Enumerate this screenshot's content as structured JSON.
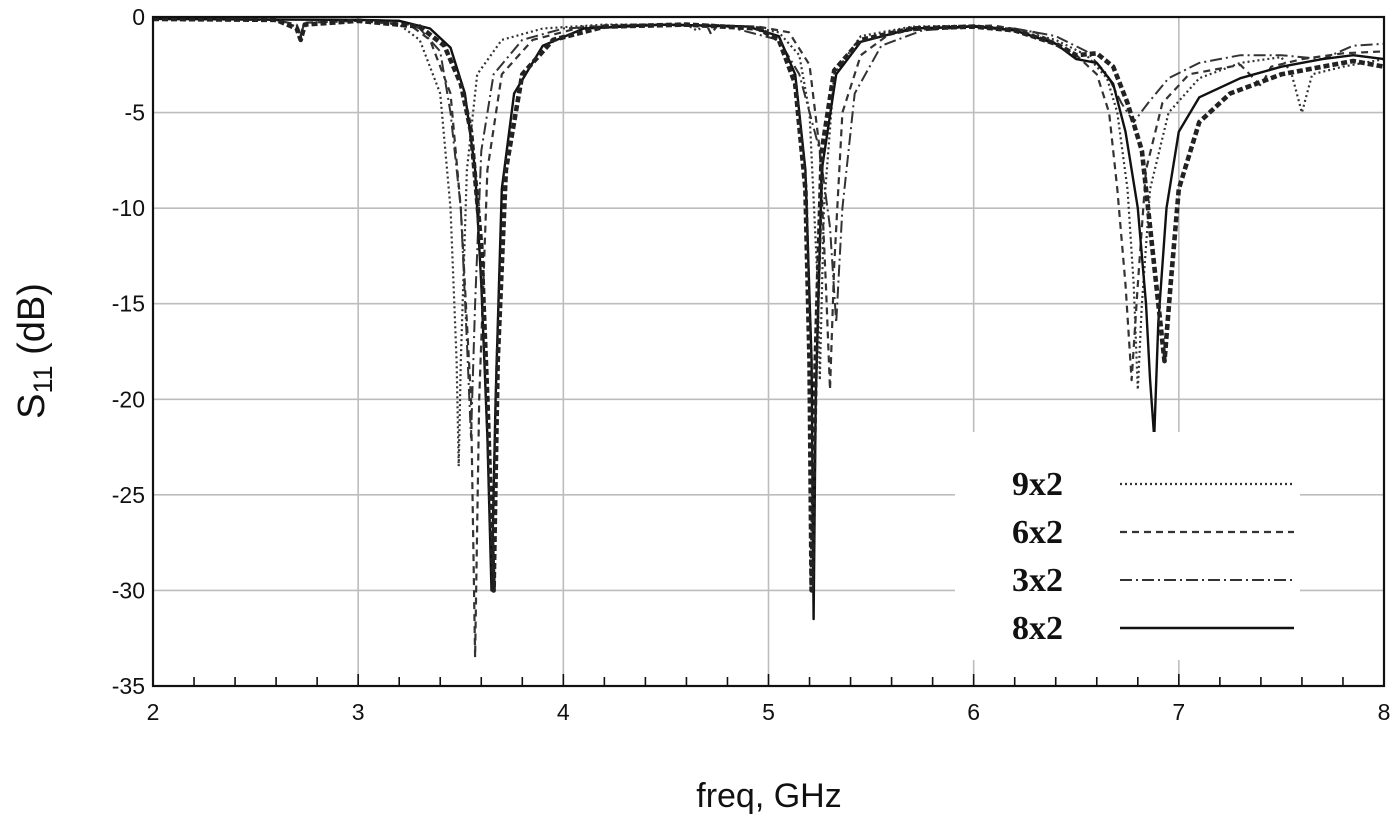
{
  "chart_data": {
    "type": "line",
    "title": "",
    "xlabel": "freq, GHz",
    "ylabel_main": "S",
    "ylabel_sub": "11",
    "ylabel_unit": " (dB)",
    "xlim": [
      2,
      8
    ],
    "ylim": [
      -35,
      0
    ],
    "xticks": [
      2,
      3,
      4,
      5,
      6,
      7,
      8
    ],
    "yticks": [
      0,
      -5,
      -10,
      -15,
      -20,
      -25,
      -30,
      -35
    ],
    "grid": true,
    "legend_position": "bottom-right",
    "series": [
      {
        "name": "9x2",
        "style": "dotted",
        "color": "#333333",
        "points": [
          [
            2.0,
            -0.1
          ],
          [
            2.6,
            -0.15
          ],
          [
            2.7,
            -0.5
          ],
          [
            2.72,
            -1.0
          ],
          [
            2.74,
            -0.3
          ],
          [
            3.0,
            -0.2
          ],
          [
            3.2,
            -0.4
          ],
          [
            3.3,
            -1.2
          ],
          [
            3.4,
            -4
          ],
          [
            3.45,
            -10
          ],
          [
            3.48,
            -18
          ],
          [
            3.49,
            -23.5
          ],
          [
            3.5,
            -18
          ],
          [
            3.53,
            -8
          ],
          [
            3.58,
            -3
          ],
          [
            3.7,
            -1.2
          ],
          [
            3.9,
            -0.6
          ],
          [
            4.2,
            -0.4
          ],
          [
            4.6,
            -0.4
          ],
          [
            4.65,
            -0.7
          ],
          [
            4.7,
            -0.4
          ],
          [
            4.9,
            -0.5
          ],
          [
            5.05,
            -0.8
          ],
          [
            5.15,
            -2
          ],
          [
            5.2,
            -5
          ],
          [
            5.24,
            -14
          ],
          [
            5.25,
            -19
          ],
          [
            5.27,
            -10
          ],
          [
            5.32,
            -3
          ],
          [
            5.45,
            -1
          ],
          [
            5.7,
            -0.5
          ],
          [
            6.0,
            -0.45
          ],
          [
            6.2,
            -0.7
          ],
          [
            6.4,
            -1.2
          ],
          [
            6.55,
            -2
          ],
          [
            6.65,
            -3.2
          ],
          [
            6.7,
            -5
          ],
          [
            6.75,
            -9
          ],
          [
            6.78,
            -14
          ],
          [
            6.8,
            -19.5
          ],
          [
            6.82,
            -15
          ],
          [
            6.86,
            -9
          ],
          [
            6.95,
            -5
          ],
          [
            7.1,
            -3.2
          ],
          [
            7.3,
            -2.4
          ],
          [
            7.5,
            -2.1
          ],
          [
            7.55,
            -3
          ],
          [
            7.6,
            -5
          ],
          [
            7.65,
            -3
          ],
          [
            7.8,
            -2.6
          ],
          [
            8.0,
            -2.2
          ]
        ]
      },
      {
        "name": "6x2",
        "style": "dashed",
        "color": "#333333",
        "points": [
          [
            2.0,
            -0.1
          ],
          [
            2.6,
            -0.15
          ],
          [
            2.7,
            -0.4
          ],
          [
            2.72,
            -0.9
          ],
          [
            2.74,
            -0.3
          ],
          [
            3.0,
            -0.2
          ],
          [
            3.25,
            -0.4
          ],
          [
            3.35,
            -1.2
          ],
          [
            3.45,
            -4
          ],
          [
            3.5,
            -10
          ],
          [
            3.55,
            -20
          ],
          [
            3.57,
            -33.5
          ],
          [
            3.59,
            -20
          ],
          [
            3.63,
            -8
          ],
          [
            3.7,
            -3
          ],
          [
            3.85,
            -1.2
          ],
          [
            4.1,
            -0.5
          ],
          [
            4.5,
            -0.4
          ],
          [
            4.7,
            -0.45
          ],
          [
            4.72,
            -0.9
          ],
          [
            4.75,
            -0.45
          ],
          [
            4.95,
            -0.5
          ],
          [
            5.1,
            -0.8
          ],
          [
            5.2,
            -2.5
          ],
          [
            5.25,
            -7
          ],
          [
            5.28,
            -14
          ],
          [
            5.3,
            -19.5
          ],
          [
            5.32,
            -13
          ],
          [
            5.36,
            -5
          ],
          [
            5.45,
            -2
          ],
          [
            5.6,
            -0.8
          ],
          [
            5.9,
            -0.5
          ],
          [
            6.1,
            -0.45
          ],
          [
            6.3,
            -0.8
          ],
          [
            6.5,
            -2
          ],
          [
            6.6,
            -3
          ],
          [
            6.66,
            -5
          ],
          [
            6.7,
            -9
          ],
          [
            6.74,
            -14
          ],
          [
            6.77,
            -19
          ],
          [
            6.8,
            -14
          ],
          [
            6.84,
            -8
          ],
          [
            6.92,
            -4.5
          ],
          [
            7.05,
            -3
          ],
          [
            7.3,
            -2.5
          ],
          [
            7.4,
            -3.6
          ],
          [
            7.45,
            -2.6
          ],
          [
            7.6,
            -2.2
          ],
          [
            7.8,
            -1.9
          ],
          [
            8.0,
            -1.8
          ]
        ]
      },
      {
        "name": "3x2",
        "style": "dashdot",
        "color": "#333333",
        "points": [
          [
            2.0,
            -0.1
          ],
          [
            3.0,
            -0.15
          ],
          [
            3.2,
            -0.2
          ],
          [
            3.3,
            -0.6
          ],
          [
            3.4,
            -1.8
          ],
          [
            3.45,
            -5
          ],
          [
            3.5,
            -10
          ],
          [
            3.53,
            -17
          ],
          [
            3.55,
            -22
          ],
          [
            3.57,
            -15
          ],
          [
            3.6,
            -7
          ],
          [
            3.66,
            -3
          ],
          [
            3.8,
            -1.2
          ],
          [
            4.0,
            -0.6
          ],
          [
            4.4,
            -0.4
          ],
          [
            4.8,
            -0.5
          ],
          [
            5.05,
            -1.2
          ],
          [
            5.15,
            -3
          ],
          [
            5.25,
            -7
          ],
          [
            5.3,
            -11
          ],
          [
            5.33,
            -16
          ],
          [
            5.36,
            -10
          ],
          [
            5.42,
            -4
          ],
          [
            5.55,
            -1.5
          ],
          [
            5.75,
            -0.7
          ],
          [
            6.0,
            -0.5
          ],
          [
            6.2,
            -0.6
          ],
          [
            6.4,
            -1
          ],
          [
            6.55,
            -1.8
          ],
          [
            6.65,
            -3
          ],
          [
            6.72,
            -4.5
          ],
          [
            6.78,
            -5.5
          ],
          [
            6.85,
            -4.5
          ],
          [
            6.95,
            -3.2
          ],
          [
            7.1,
            -2.4
          ],
          [
            7.3,
            -2
          ],
          [
            7.5,
            -2
          ],
          [
            7.7,
            -2.2
          ],
          [
            7.85,
            -1.5
          ],
          [
            8.0,
            -1.4
          ]
        ]
      },
      {
        "name": "8x2",
        "style": "solid",
        "color": "#111111",
        "points": [
          [
            2.0,
            -0.1
          ],
          [
            3.0,
            -0.15
          ],
          [
            3.2,
            -0.2
          ],
          [
            3.35,
            -0.6
          ],
          [
            3.45,
            -1.6
          ],
          [
            3.52,
            -4
          ],
          [
            3.57,
            -8
          ],
          [
            3.6,
            -14
          ],
          [
            3.63,
            -22
          ],
          [
            3.65,
            -30
          ],
          [
            3.67,
            -20
          ],
          [
            3.7,
            -9
          ],
          [
            3.76,
            -4
          ],
          [
            3.9,
            -1.5
          ],
          [
            4.1,
            -0.6
          ],
          [
            4.5,
            -0.4
          ],
          [
            4.9,
            -0.5
          ],
          [
            5.05,
            -1
          ],
          [
            5.13,
            -3
          ],
          [
            5.18,
            -8
          ],
          [
            5.21,
            -18
          ],
          [
            5.22,
            -31.5
          ],
          [
            5.23,
            -20
          ],
          [
            5.26,
            -8
          ],
          [
            5.33,
            -3
          ],
          [
            5.45,
            -1.3
          ],
          [
            5.7,
            -0.6
          ],
          [
            6.0,
            -0.5
          ],
          [
            6.2,
            -0.7
          ],
          [
            6.4,
            -1.4
          ],
          [
            6.5,
            -2.2
          ],
          [
            6.6,
            -2.4
          ],
          [
            6.68,
            -3.5
          ],
          [
            6.74,
            -6
          ],
          [
            6.8,
            -10
          ],
          [
            6.84,
            -15
          ],
          [
            6.86,
            -19
          ],
          [
            6.88,
            -22
          ],
          [
            6.9,
            -16
          ],
          [
            6.94,
            -10
          ],
          [
            7.0,
            -6
          ],
          [
            7.1,
            -4.2
          ],
          [
            7.3,
            -3.2
          ],
          [
            7.5,
            -2.6
          ],
          [
            7.7,
            -2.2
          ],
          [
            7.85,
            -2
          ],
          [
            8.0,
            -2.2
          ]
        ]
      },
      {
        "name": "",
        "style": "heavydash",
        "color": "#222222",
        "points": [
          [
            2.0,
            -0.1
          ],
          [
            2.6,
            -0.15
          ],
          [
            2.7,
            -0.6
          ],
          [
            2.72,
            -1.2
          ],
          [
            2.74,
            -0.4
          ],
          [
            3.0,
            -0.2
          ],
          [
            3.3,
            -0.5
          ],
          [
            3.42,
            -1.5
          ],
          [
            3.5,
            -3.5
          ],
          [
            3.55,
            -6
          ],
          [
            3.6,
            -12
          ],
          [
            3.63,
            -20
          ],
          [
            3.66,
            -30
          ],
          [
            3.68,
            -18
          ],
          [
            3.72,
            -8
          ],
          [
            3.8,
            -3
          ],
          [
            3.95,
            -1.2
          ],
          [
            4.2,
            -0.5
          ],
          [
            4.6,
            -0.4
          ],
          [
            4.95,
            -0.6
          ],
          [
            5.05,
            -1.2
          ],
          [
            5.13,
            -3.5
          ],
          [
            5.18,
            -9
          ],
          [
            5.2,
            -18
          ],
          [
            5.21,
            -30
          ],
          [
            5.23,
            -18
          ],
          [
            5.26,
            -7
          ],
          [
            5.32,
            -2.8
          ],
          [
            5.45,
            -1.2
          ],
          [
            5.7,
            -0.6
          ],
          [
            6.0,
            -0.5
          ],
          [
            6.2,
            -0.7
          ],
          [
            6.4,
            -1.4
          ],
          [
            6.5,
            -2
          ],
          [
            6.6,
            -1.9
          ],
          [
            6.68,
            -2.6
          ],
          [
            6.75,
            -4.5
          ],
          [
            6.82,
            -7
          ],
          [
            6.86,
            -11
          ],
          [
            6.9,
            -15
          ],
          [
            6.93,
            -18
          ],
          [
            6.96,
            -14
          ],
          [
            7.0,
            -9
          ],
          [
            7.1,
            -5.5
          ],
          [
            7.25,
            -4
          ],
          [
            7.5,
            -3
          ],
          [
            7.7,
            -2.6
          ],
          [
            7.85,
            -2.3
          ],
          [
            8.0,
            -2.6
          ]
        ]
      }
    ]
  }
}
